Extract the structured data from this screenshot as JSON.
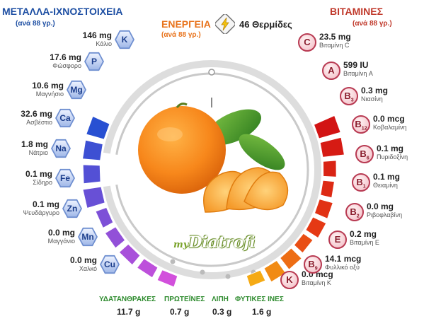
{
  "minerals": {
    "title": "ΜΕΤΑΛΛΑ-ΙΧΝΟΣΤΟΙΧΕΙΑ",
    "per": "(ανά 88 γρ.)",
    "items": [
      {
        "value": "146 mg",
        "name": "Κάλιο",
        "symbol": "K",
        "level": 0.55
      },
      {
        "value": "17.6 mg",
        "name": "Φώσφορο",
        "symbol": "P",
        "level": 0.5
      },
      {
        "value": "10.6 mg",
        "name": "Μαγνήσιο",
        "symbol": "Mg",
        "level": 0.45
      },
      {
        "value": "32.6 mg",
        "name": "Ασβέστιο",
        "symbol": "Ca",
        "level": 0.55
      },
      {
        "value": "1.8 mg",
        "name": "Νάτριο",
        "symbol": "Na",
        "level": 0.1
      },
      {
        "value": "0.1 mg",
        "name": "Σίδηρο",
        "symbol": "Fe",
        "level": 0.15
      },
      {
        "value": "0.1 mg",
        "name": "Ψευδάργυρο",
        "symbol": "Zn",
        "level": 0.15
      },
      {
        "value": "0.0 mg",
        "name": "Μαγγάνιο",
        "symbol": "Mn",
        "level": 0.1
      },
      {
        "value": "0.0 mg",
        "name": "Χαλκό",
        "symbol": "Cu",
        "level": 0.1
      }
    ]
  },
  "vitamins": {
    "title": "ΒΙΤΑΜΙΝΕΣ",
    "per": "(ανά 88 γρ.)",
    "items": [
      {
        "value": "23.5 mg",
        "name": "Βιταμίνη C",
        "symbol": "C",
        "sub": "",
        "level": 0.8
      },
      {
        "value": "599 IU",
        "name": "Βιταμίνη A",
        "symbol": "A",
        "sub": "",
        "level": 0.75
      },
      {
        "value": "0.3 mg",
        "name": "Νιασίνη",
        "symbol": "B",
        "sub": "3",
        "level": 0.2
      },
      {
        "value": "0.0 mcg",
        "name": "Κοβαλαμίνη",
        "symbol": "B",
        "sub": "12",
        "level": 0.1
      },
      {
        "value": "0.1 mg",
        "name": "Πυριδοξίνη",
        "symbol": "B",
        "sub": "6",
        "level": 0.25
      },
      {
        "value": "0.1 mg",
        "name": "Θειαμίνη",
        "symbol": "B",
        "sub": "1",
        "level": 0.3
      },
      {
        "value": "0.0 mg",
        "name": "Ριβοφλαβίνη",
        "symbol": "B",
        "sub": "2",
        "level": 0.1
      },
      {
        "value": "0.2 mg",
        "name": "Βιταμίνη E",
        "symbol": "E",
        "sub": "",
        "level": 0.3
      },
      {
        "value": "14.1 mcg",
        "name": "Φυλλικό οξύ",
        "symbol": "B",
        "sub": "9",
        "level": 0.35
      },
      {
        "value": "0.0 mcg",
        "name": "Βιταμίνη K",
        "symbol": "K",
        "sub": "",
        "level": 0.1
      }
    ]
  },
  "energy": {
    "label": "ΕΝΕΡΓΕΙΑ",
    "per": "(ανά 88 γρ.)",
    "value": "46 Θερμίδες",
    "icon": "lightning-icon"
  },
  "macros": [
    {
      "label": "ΥΔΑΤΑΝΘΡΑΚΕΣ",
      "value": "11.7 g"
    },
    {
      "label": "ΠΡΩΤΕΪΝΕΣ",
      "value": "0.7 g"
    },
    {
      "label": "ΛΙΠΗ",
      "value": "0.3 g"
    },
    {
      "label": "ΦΥΤΙΚΕΣ ΙΝΕΣ",
      "value": "1.6 g"
    }
  ],
  "logo": {
    "prefix": "my",
    "name": "Diatrofi"
  },
  "colors": {
    "minerals_title": "#1e4fa3",
    "vitamins_title": "#c0392b",
    "energy": "#e8731c",
    "macro_label": "#2e8b2e"
  }
}
